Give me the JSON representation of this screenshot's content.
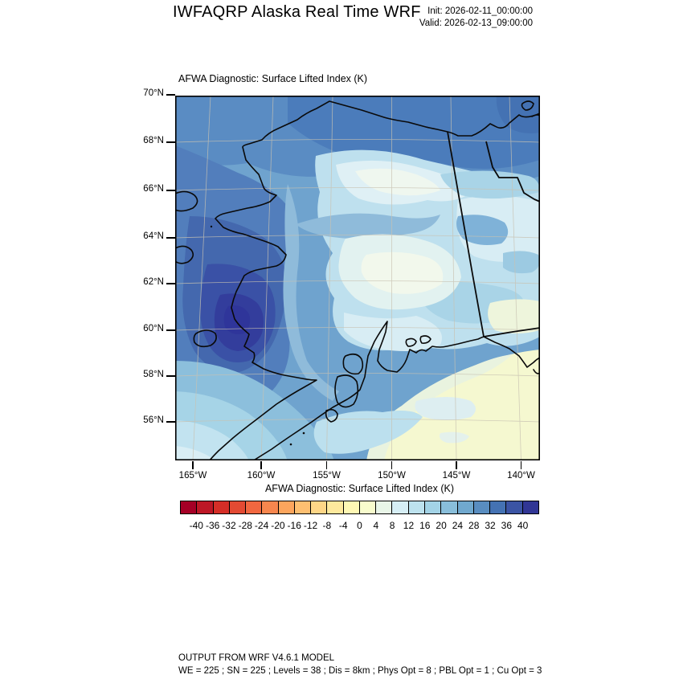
{
  "header": {
    "title": "IWFAQRP Alaska Real Time WRF",
    "init_label": "Init: 2026-02-11_00:00:00",
    "valid_label": "Valid: 2026-02-13_09:00:00"
  },
  "plot": {
    "title": "AFWA Diagnostic: Surface Lifted Index   (K)"
  },
  "axes": {
    "lat_labels": [
      "70°N",
      "68°N",
      "66°N",
      "64°N",
      "62°N",
      "60°N",
      "58°N",
      "56°N"
    ],
    "lon_labels": [
      "165°W",
      "160°W",
      "155°W",
      "150°W",
      "145°W",
      "140°W"
    ]
  },
  "colorbar": {
    "title": "AFWA Diagnostic: Surface Lifted Index  (K)",
    "tick_labels": [
      "-40",
      "-36",
      "-32",
      "-28",
      "-24",
      "-20",
      "-16",
      "-12",
      "-8",
      "-4",
      "0",
      "4",
      "8",
      "12",
      "16",
      "20",
      "24",
      "28",
      "32",
      "36",
      "40"
    ],
    "colors": [
      "#a50026",
      "#bd1726",
      "#d52e27",
      "#e34a33",
      "#f16740",
      "#f7864e",
      "#fca55d",
      "#fdbf71",
      "#fed687",
      "#fee99d",
      "#fff8b4",
      "#f8fccd",
      "#e9f6e8",
      "#d6eef5",
      "#bde2ee",
      "#a3d3e6",
      "#89beda",
      "#70a8ce",
      "#598dc0",
      "#4472b3",
      "#3b54a4",
      "#313695"
    ]
  },
  "footer": {
    "line1": "OUTPUT FROM WRF V4.6.1 MODEL",
    "line2": "WE = 225 ; SN = 225 ; Levels = 38 ; Dis = 8km ; Phys Opt = 8 ; PBL Opt = 1 ; Cu Opt = 3"
  },
  "chart_data": {
    "type": "heatmap",
    "title": "AFWA Diagnostic: Surface Lifted Index   (K)",
    "variable": "Surface Lifted Index",
    "units": "K",
    "projection": "Lambert conformal over Alaska",
    "lat_ticks": [
      "56°N",
      "58°N",
      "60°N",
      "62°N",
      "64°N",
      "66°N",
      "68°N",
      "70°N"
    ],
    "lon_ticks": [
      "165°W",
      "160°W",
      "155°W",
      "150°W",
      "145°W",
      "140°W"
    ],
    "contour_interval": 4,
    "tick_values": [
      -40,
      -36,
      -32,
      -28,
      -24,
      -20,
      -16,
      -12,
      -8,
      -4,
      0,
      4,
      8,
      12,
      16,
      20,
      24,
      28,
      32,
      36,
      40
    ],
    "legend_position": "bottom",
    "grid": "faint graticule on",
    "region_values": {
      "west_central_alaska_dark_blue": "32 to 40",
      "arctic_coast_north_slope": "24 to 28",
      "interior_pale_band": "0 to 12",
      "gulf_of_alaska_pale_yellow": "-4 to 4",
      "southwest_bering_sea": "12 to 24",
      "eastern_yukon_canada": "8 to 20"
    }
  }
}
